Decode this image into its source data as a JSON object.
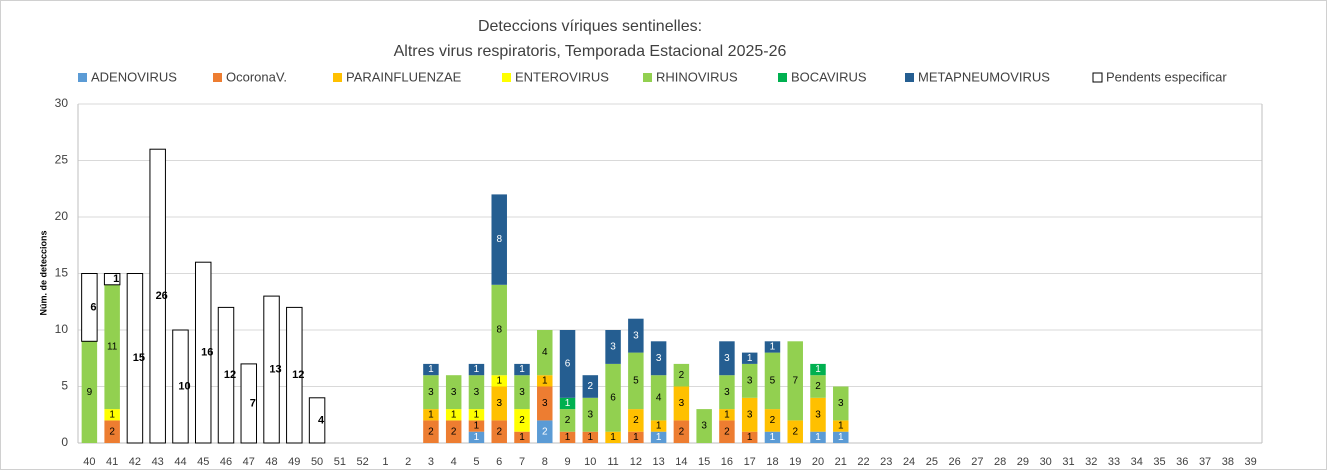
{
  "chart_data": {
    "type": "bar",
    "stacked": true,
    "title": "Deteccions víriques sentinelles:",
    "subtitle": "Altres virus respiratoris,  Temporada Estacional 2025-26",
    "ylabel": "Núm. de deteccions",
    "categories": [
      "40",
      "41",
      "42",
      "43",
      "44",
      "45",
      "46",
      "47",
      "48",
      "49",
      "50",
      "51",
      "52",
      "1",
      "2",
      "3",
      "4",
      "5",
      "6",
      "7",
      "8",
      "9",
      "10",
      "11",
      "12",
      "13",
      "14",
      "15",
      "16",
      "17",
      "18",
      "19",
      "20",
      "21",
      "22",
      "23",
      "24",
      "25",
      "26",
      "27",
      "28",
      "29",
      "30",
      "31",
      "32",
      "33",
      "34",
      "35",
      "36",
      "37",
      "38",
      "39"
    ],
    "series": [
      {
        "name": "ADENOVIRUS",
        "color": "#5b9bd5",
        "values": [
          0,
          0,
          0,
          0,
          0,
          0,
          0,
          0,
          0,
          0,
          0,
          0,
          0,
          0,
          0,
          0,
          0,
          1,
          0,
          0,
          2,
          0,
          0,
          0,
          0,
          1,
          0,
          0,
          0,
          0,
          1,
          0,
          1,
          1,
          0,
          0,
          0,
          0,
          0,
          0,
          0,
          0,
          0,
          0,
          0,
          0,
          0,
          0,
          0,
          0,
          0,
          0
        ]
      },
      {
        "name": "OcoronaV.",
        "color": "#ed7d31",
        "values": [
          0,
          2,
          0,
          0,
          0,
          0,
          0,
          0,
          0,
          0,
          0,
          0,
          0,
          0,
          0,
          2,
          2,
          1,
          2,
          1,
          3,
          1,
          1,
          0,
          1,
          0,
          2,
          0,
          2,
          1,
          0,
          0,
          0,
          0,
          0,
          0,
          0,
          0,
          0,
          0,
          0,
          0,
          0,
          0,
          0,
          0,
          0,
          0,
          0,
          0,
          0,
          0
        ]
      },
      {
        "name": "PARAINFLUENZAE",
        "color": "#ffc000",
        "values": [
          0,
          0,
          0,
          0,
          0,
          0,
          0,
          0,
          0,
          0,
          0,
          0,
          0,
          0,
          0,
          1,
          0,
          0,
          3,
          0,
          1,
          0,
          0,
          1,
          2,
          1,
          3,
          0,
          1,
          3,
          2,
          2,
          3,
          1,
          0,
          0,
          0,
          0,
          0,
          0,
          0,
          0,
          0,
          0,
          0,
          0,
          0,
          0,
          0,
          0,
          0,
          0
        ]
      },
      {
        "name": "ENTEROVIRUS",
        "color": "#ffff00",
        "values": [
          0,
          1,
          0,
          0,
          0,
          0,
          0,
          0,
          0,
          0,
          0,
          0,
          0,
          0,
          0,
          0,
          1,
          1,
          1,
          2,
          0,
          0,
          0,
          0,
          0,
          0,
          0,
          0,
          0,
          0,
          0,
          0,
          0,
          0,
          0,
          0,
          0,
          0,
          0,
          0,
          0,
          0,
          0,
          0,
          0,
          0,
          0,
          0,
          0,
          0,
          0,
          0
        ]
      },
      {
        "name": "RHINOVIRUS",
        "color": "#92d050",
        "values": [
          9,
          11,
          0,
          0,
          0,
          0,
          0,
          0,
          0,
          0,
          0,
          0,
          0,
          0,
          0,
          3,
          3,
          3,
          8,
          3,
          4,
          2,
          3,
          6,
          5,
          4,
          2,
          3,
          3,
          3,
          5,
          7,
          2,
          3,
          0,
          0,
          0,
          0,
          0,
          0,
          0,
          0,
          0,
          0,
          0,
          0,
          0,
          0,
          0,
          0,
          0,
          0
        ]
      },
      {
        "name": "BOCAVIRUS",
        "color": "#00b050",
        "values": [
          0,
          0,
          0,
          0,
          0,
          0,
          0,
          0,
          0,
          0,
          0,
          0,
          0,
          0,
          0,
          0,
          0,
          0,
          0,
          0,
          0,
          1,
          0,
          0,
          0,
          0,
          0,
          0,
          0,
          0,
          0,
          0,
          1,
          0,
          0,
          0,
          0,
          0,
          0,
          0,
          0,
          0,
          0,
          0,
          0,
          0,
          0,
          0,
          0,
          0,
          0,
          0
        ]
      },
      {
        "name": "METAPNEUMOVIRUS",
        "color": "#255e91",
        "values": [
          0,
          0,
          0,
          0,
          0,
          0,
          0,
          0,
          0,
          0,
          0,
          0,
          0,
          0,
          0,
          1,
          0,
          1,
          8,
          1,
          0,
          6,
          2,
          3,
          3,
          3,
          0,
          0,
          3,
          1,
          1,
          0,
          0,
          0,
          0,
          0,
          0,
          0,
          0,
          0,
          0,
          0,
          0,
          0,
          0,
          0,
          0,
          0,
          0,
          0,
          0,
          0
        ]
      },
      {
        "name": "Pendents especificar",
        "color": "#ffffff",
        "edgecolor": "#000000",
        "values": [
          6,
          1,
          15,
          26,
          10,
          16,
          12,
          7,
          13,
          12,
          4,
          0,
          0,
          0,
          0,
          0,
          0,
          0,
          0,
          0,
          0,
          0,
          0,
          0,
          0,
          0,
          0,
          0,
          0,
          0,
          0,
          0,
          0,
          0,
          0,
          0,
          0,
          0,
          0,
          0,
          0,
          0,
          0,
          0,
          0,
          0,
          0,
          0,
          0,
          0,
          0,
          0
        ]
      }
    ],
    "ylim": [
      0,
      30
    ],
    "yticks": [
      0,
      5,
      10,
      15,
      20,
      25,
      30
    ],
    "grid": true,
    "legend": "top"
  }
}
